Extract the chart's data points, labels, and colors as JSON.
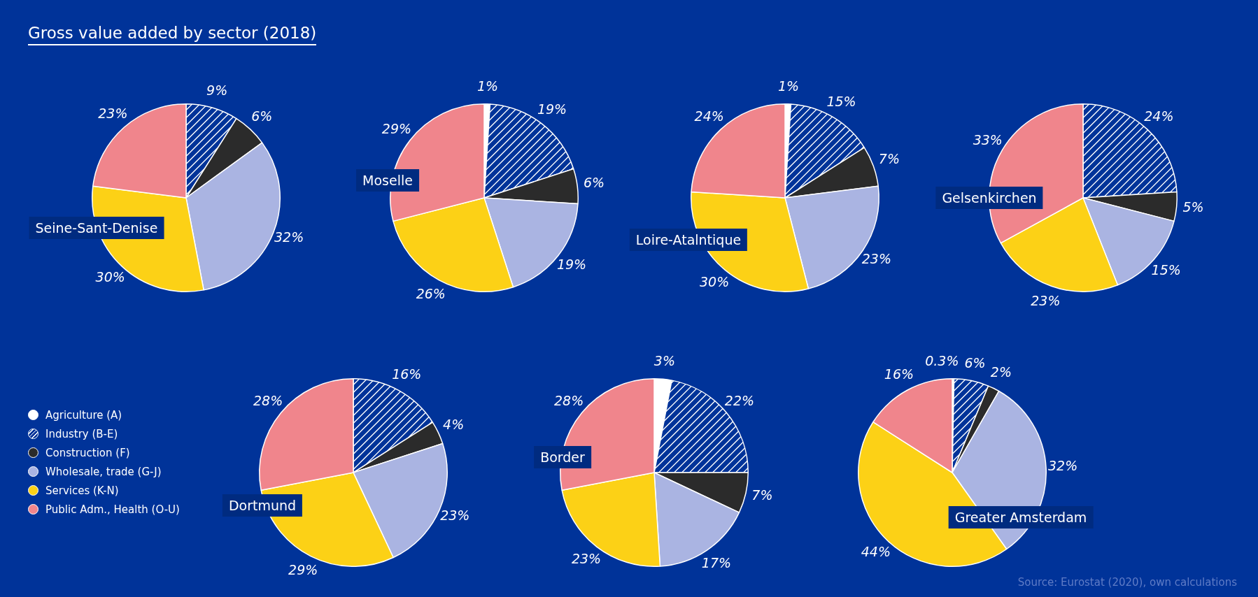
{
  "chart_data": [
    {
      "type": "pie",
      "title": "Gross value added by sector (2018)",
      "subtitle": "Seine-Sant-Denise",
      "legend": "bottom left",
      "categories": [
        "Agriculture (A)",
        "Industry (B-E)",
        "Construction (F)",
        "Wholesale, trade (G-J)",
        "Services (K-N)",
        "Public Adm., Health (O-U)"
      ],
      "values": [
        null,
        9,
        6,
        32,
        30,
        23
      ],
      "value_labels": [
        null,
        "9%",
        "6%",
        "32%",
        "30%",
        "23%"
      ],
      "colors": [
        "#ffffff",
        "#003399",
        "#2b2b2b",
        "#aab4e2",
        "#fcd116",
        "#f0858c"
      ]
    },
    {
      "type": "pie",
      "subtitle": "Moselle",
      "categories": [
        null,
        null,
        null,
        null,
        null,
        null
      ],
      "values": [
        1,
        19,
        6,
        19,
        26,
        29
      ],
      "value_labels": [
        "1%",
        "19%",
        "6%",
        "19%",
        "26%",
        "29%"
      ],
      "colors": [
        "#ffffff",
        "#003399",
        "#2b2b2b",
        "#aab4e2",
        "#fcd116",
        "#f0858c"
      ]
    },
    {
      "type": "pie",
      "subtitle": "Loire-Atalntique",
      "categories": [
        null,
        null,
        null,
        null,
        null,
        null
      ],
      "values": [
        1,
        15,
        7,
        23,
        30,
        24
      ],
      "value_labels": [
        "1%",
        "15%",
        "7%",
        "23%",
        "30%",
        "24%"
      ],
      "colors": [
        "#ffffff",
        "#003399",
        "#2b2b2b",
        "#aab4e2",
        "#fcd116",
        "#f0858c"
      ]
    },
    {
      "type": "pie",
      "subtitle": "Gelsenkirchen",
      "categories": [
        null,
        null,
        null,
        null,
        null,
        null
      ],
      "values": [
        null,
        24,
        5,
        15,
        23,
        33
      ],
      "value_labels": [
        null,
        "24%",
        "5%",
        "15%",
        "23%",
        "33%"
      ],
      "colors": [
        "#ffffff",
        "#003399",
        "#2b2b2b",
        "#aab4e2",
        "#fcd116",
        "#f0858c"
      ]
    },
    {
      "type": "pie",
      "subtitle": "Dortmund",
      "categories": [
        null,
        null,
        null,
        null,
        null,
        null
      ],
      "values": [
        null,
        16,
        4,
        23,
        29,
        28
      ],
      "value_labels": [
        null,
        "16%",
        "4%",
        "23%",
        "29%",
        "28%"
      ],
      "colors": [
        "#ffffff",
        "#003399",
        "#2b2b2b",
        "#aab4e2",
        "#fcd116",
        "#f0858c"
      ]
    },
    {
      "type": "pie",
      "subtitle": "Border",
      "categories": [
        null,
        null,
        null,
        null,
        null,
        null
      ],
      "values": [
        3,
        22,
        7,
        17,
        23,
        28
      ],
      "value_labels": [
        "3%",
        "22%",
        "7%",
        "17%",
        "23%",
        "28%"
      ],
      "colors": [
        "#ffffff",
        "#003399",
        "#2b2b2b",
        "#aab4e2",
        "#fcd116",
        "#f0858c"
      ]
    },
    {
      "type": "pie",
      "subtitle": "Greater Amsterdam",
      "annotations": [
        "Source: Eurostat (2020), own calculations"
      ],
      "categories": [
        null,
        null,
        null,
        null,
        null,
        null
      ],
      "values": [
        0.3,
        6,
        2,
        32,
        44,
        16
      ],
      "value_labels": [
        "0.3%",
        "6%",
        "2%",
        "32%",
        "44%",
        "16%"
      ],
      "colors": [
        "#ffffff",
        "#003399",
        "#2b2b2b",
        "#aab4e2",
        "#fcd116",
        "#f0858c"
      ]
    }
  ]
}
